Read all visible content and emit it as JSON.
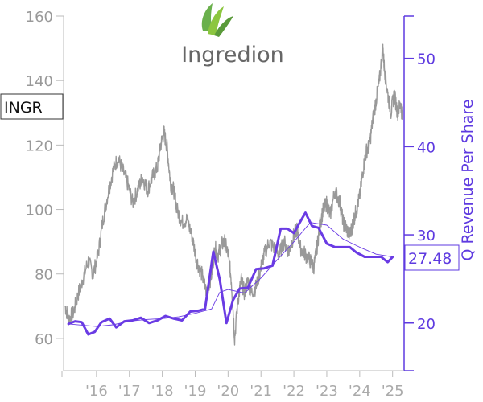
{
  "logo": {
    "text": "Ingredion",
    "leaf_color": "#6ab04c"
  },
  "ticker": "INGR",
  "colors": {
    "price": "#999999",
    "revenue": "#6a3be4",
    "axis_right": "#5e3ae0",
    "axis_left": "#999999"
  },
  "chart_data": {
    "type": "line",
    "title": "",
    "xlabel": "",
    "x_ticks": [
      "'16",
      "'17",
      "'18",
      "'19",
      "'20",
      "'21",
      "'22",
      "'23",
      "'24",
      "'25"
    ],
    "x_tick_years": [
      2016,
      2017,
      2018,
      2019,
      2020,
      2021,
      2022,
      2023,
      2024,
      2025
    ],
    "xlim": [
      2015.0,
      2025.35
    ],
    "left_axis": {
      "ylim": [
        50,
        160
      ],
      "ticks": [
        60,
        80,
        100,
        120,
        140,
        160
      ],
      "label": ""
    },
    "right_axis": {
      "ylim": [
        14.6,
        54.8
      ],
      "ticks": [
        20,
        30,
        40,
        50
      ],
      "label": "Q Revenue Per Share"
    },
    "last_value_label": "27.48",
    "series": [
      {
        "axis": "left",
        "style": "price",
        "points": [
          [
            2015.05,
            70
          ],
          [
            2015.15,
            66
          ],
          [
            2015.3,
            68
          ],
          [
            2015.45,
            74
          ],
          [
            2015.6,
            79
          ],
          [
            2015.75,
            84
          ],
          [
            2015.9,
            80
          ],
          [
            2016.05,
            86
          ],
          [
            2016.2,
            97
          ],
          [
            2016.35,
            105
          ],
          [
            2016.5,
            112
          ],
          [
            2016.65,
            116
          ],
          [
            2016.8,
            112
          ],
          [
            2016.95,
            108
          ],
          [
            2017.1,
            102
          ],
          [
            2017.25,
            106
          ],
          [
            2017.4,
            110
          ],
          [
            2017.55,
            106
          ],
          [
            2017.7,
            110
          ],
          [
            2017.85,
            113
          ],
          [
            2017.95,
            120
          ],
          [
            2018.05,
            124
          ],
          [
            2018.15,
            119
          ],
          [
            2018.25,
            108
          ],
          [
            2018.35,
            106
          ],
          [
            2018.45,
            100
          ],
          [
            2018.6,
            96
          ],
          [
            2018.75,
            97
          ],
          [
            2018.9,
            92
          ],
          [
            2019.05,
            84
          ],
          [
            2019.2,
            80
          ],
          [
            2019.35,
            74
          ],
          [
            2019.5,
            80
          ],
          [
            2019.6,
            88
          ],
          [
            2019.7,
            86
          ],
          [
            2019.8,
            89
          ],
          [
            2019.9,
            90
          ],
          [
            2020.0,
            86
          ],
          [
            2020.1,
            78
          ],
          [
            2020.2,
            60
          ],
          [
            2020.3,
            72
          ],
          [
            2020.4,
            78
          ],
          [
            2020.5,
            74
          ],
          [
            2020.6,
            78
          ],
          [
            2020.7,
            74
          ],
          [
            2020.85,
            76
          ],
          [
            2021.0,
            82
          ],
          [
            2021.1,
            86
          ],
          [
            2021.25,
            90
          ],
          [
            2021.4,
            88
          ],
          [
            2021.55,
            86
          ],
          [
            2021.7,
            90
          ],
          [
            2021.85,
            87
          ],
          [
            2022.0,
            92
          ],
          [
            2022.1,
            94
          ],
          [
            2022.2,
            88
          ],
          [
            2022.35,
            86
          ],
          [
            2022.5,
            84
          ],
          [
            2022.6,
            82
          ],
          [
            2022.7,
            88
          ],
          [
            2022.8,
            96
          ],
          [
            2022.9,
            100
          ],
          [
            2023.0,
            102
          ],
          [
            2023.1,
            98
          ],
          [
            2023.25,
            106
          ],
          [
            2023.4,
            102
          ],
          [
            2023.5,
            96
          ],
          [
            2023.6,
            94
          ],
          [
            2023.7,
            92
          ],
          [
            2023.8,
            96
          ],
          [
            2023.9,
            100
          ],
          [
            2024.0,
            104
          ],
          [
            2024.1,
            112
          ],
          [
            2024.2,
            118
          ],
          [
            2024.3,
            120
          ],
          [
            2024.4,
            128
          ],
          [
            2024.5,
            134
          ],
          [
            2024.6,
            140
          ],
          [
            2024.7,
            150
          ],
          [
            2024.75,
            144
          ],
          [
            2024.85,
            136
          ],
          [
            2024.95,
            130
          ],
          [
            2025.05,
            136
          ],
          [
            2025.15,
            130
          ],
          [
            2025.25,
            133
          ],
          [
            2025.3,
            128
          ]
        ]
      },
      {
        "axis": "right",
        "style": "revenue",
        "name": "",
        "points": [
          [
            2015.15,
            19.9
          ],
          [
            2015.35,
            20.2
          ],
          [
            2015.55,
            20.1
          ],
          [
            2015.75,
            18.7
          ],
          [
            2015.95,
            19.0
          ],
          [
            2016.15,
            20.1
          ],
          [
            2016.4,
            20.5
          ],
          [
            2016.6,
            19.5
          ],
          [
            2016.85,
            20.2
          ],
          [
            2017.1,
            20.3
          ],
          [
            2017.35,
            20.6
          ],
          [
            2017.6,
            20.0
          ],
          [
            2017.85,
            20.3
          ],
          [
            2018.1,
            20.8
          ],
          [
            2018.35,
            20.5
          ],
          [
            2018.6,
            20.3
          ],
          [
            2018.85,
            21.3
          ],
          [
            2019.1,
            21.4
          ],
          [
            2019.3,
            21.6
          ],
          [
            2019.55,
            28.1
          ],
          [
            2019.75,
            24.9
          ],
          [
            2019.95,
            20.0
          ],
          [
            2020.15,
            22.6
          ],
          [
            2020.35,
            23.9
          ],
          [
            2020.6,
            24.0
          ],
          [
            2020.85,
            26.1
          ],
          [
            2021.1,
            26.2
          ],
          [
            2021.35,
            26.5
          ],
          [
            2021.6,
            30.7
          ],
          [
            2021.8,
            30.7
          ],
          [
            2022.0,
            30.2
          ],
          [
            2022.15,
            31.2
          ],
          [
            2022.35,
            32.5
          ],
          [
            2022.55,
            31.0
          ],
          [
            2022.75,
            30.8
          ],
          [
            2023.0,
            29.0
          ],
          [
            2023.25,
            28.6
          ],
          [
            2023.5,
            28.6
          ],
          [
            2023.7,
            28.6
          ],
          [
            2023.9,
            28.0
          ],
          [
            2024.15,
            27.5
          ],
          [
            2024.4,
            27.5
          ],
          [
            2024.65,
            27.5
          ],
          [
            2024.85,
            26.9
          ],
          [
            2025.0,
            27.48
          ]
        ]
      },
      {
        "axis": "right",
        "style": "trend",
        "name": "",
        "points": [
          [
            2015.15,
            19.9
          ],
          [
            2016.0,
            19.6
          ],
          [
            2016.5,
            19.8
          ],
          [
            2017.0,
            20.2
          ],
          [
            2017.5,
            20.4
          ],
          [
            2018.0,
            20.5
          ],
          [
            2018.5,
            20.7
          ],
          [
            2019.0,
            21.1
          ],
          [
            2019.5,
            21.6
          ],
          [
            2019.75,
            23.5
          ],
          [
            2020.0,
            23.8
          ],
          [
            2020.5,
            23.4
          ],
          [
            2021.0,
            25.1
          ],
          [
            2021.5,
            27.2
          ],
          [
            2022.0,
            29.2
          ],
          [
            2022.5,
            31.4
          ],
          [
            2023.0,
            31.1
          ],
          [
            2023.5,
            29.5
          ],
          [
            2024.0,
            28.6
          ],
          [
            2024.5,
            27.8
          ],
          [
            2025.0,
            27.5
          ]
        ]
      }
    ]
  }
}
